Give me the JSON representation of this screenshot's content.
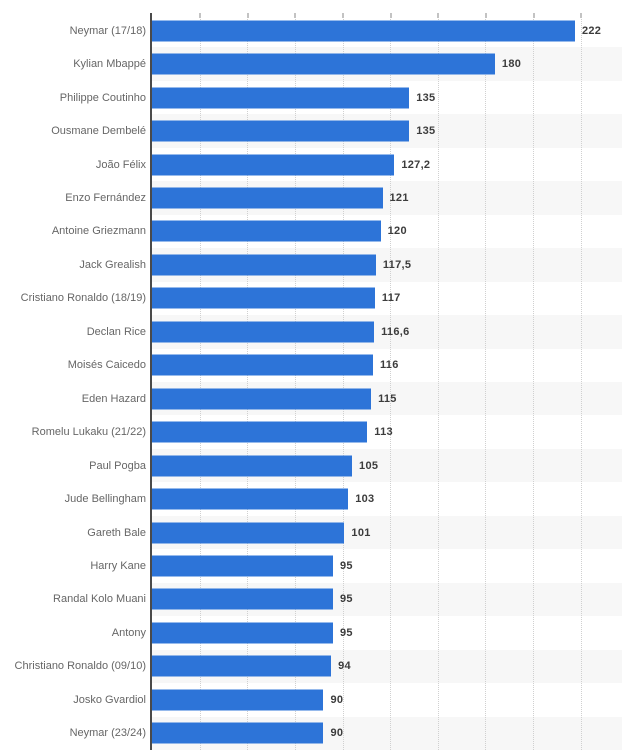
{
  "chart_data": {
    "type": "bar",
    "orientation": "horizontal",
    "title": "",
    "xlabel": "",
    "ylabel": "",
    "legend": "none",
    "grid": true,
    "gridline_style": "dotted-vertical",
    "gridline_interval": 25,
    "xlim": [
      0,
      246.7
    ],
    "bar_color": "#2d74d8",
    "categories": [
      "Neymar (17/18)",
      "Kylian Mbappé",
      "Philippe Coutinho",
      "Ousmane Dembelé",
      "João Félix",
      "Enzo Fernández",
      "Antoine Griezmann",
      "Jack Grealish",
      "Cristiano Ronaldo (18/19)",
      "Declan Rice",
      "Moisés Caicedo",
      "Eden Hazard",
      "Romelu Lukaku (21/22)",
      "Paul Pogba",
      "Jude Bellingham",
      "Gareth Bale",
      "Harry Kane",
      "Randal Kolo Muani",
      "Antony",
      "Christiano Ronaldo (09/10)",
      "Josko Gvardiol",
      "Neymar (23/24)"
    ],
    "values": [
      222,
      180,
      135,
      135,
      127.2,
      121,
      120,
      117.5,
      117,
      116.6,
      116,
      115,
      113,
      105,
      103,
      101,
      95,
      95,
      95,
      94,
      90,
      90
    ],
    "value_labels": [
      "222",
      "180",
      "135",
      "135",
      "127,2",
      "121",
      "120",
      "117,5",
      "117",
      "116,6",
      "116",
      "115",
      "113",
      "105",
      "103",
      "101",
      "95",
      "95",
      "95",
      "94",
      "90",
      "90"
    ]
  }
}
